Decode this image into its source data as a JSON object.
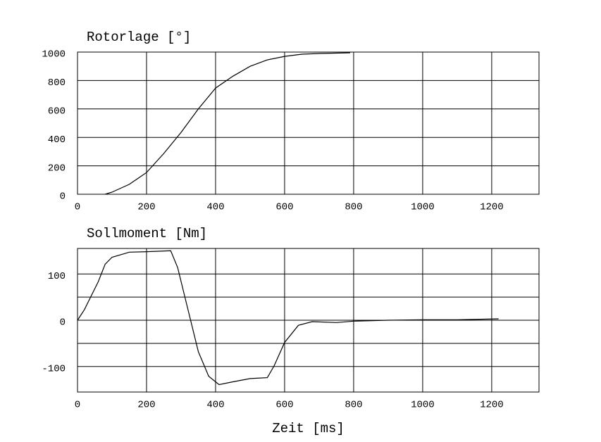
{
  "chart_data": [
    {
      "type": "line",
      "title": "Rotorlage [°]",
      "x": [
        80,
        100,
        150,
        200,
        250,
        300,
        350,
        400,
        450,
        500,
        550,
        600,
        650,
        700,
        790
      ],
      "values": [
        0,
        15,
        70,
        153,
        287,
        435,
        600,
        747,
        830,
        900,
        945,
        970,
        985,
        990,
        995
      ],
      "color": "#000000",
      "xlim": [
        0,
        1337
      ],
      "xticks": [
        0,
        200,
        400,
        600,
        800,
        1000,
        1200
      ],
      "ylim": [
        0,
        1000
      ],
      "yticks": [
        0,
        200,
        400,
        600,
        800,
        1000
      ],
      "grid": true
    },
    {
      "type": "line",
      "title": "Sollmoment [Nm]",
      "xlabel": "Zeit [ms]",
      "x": [
        0,
        20,
        40,
        60,
        80,
        100,
        150,
        200,
        270,
        290,
        320,
        350,
        380,
        410,
        450,
        500,
        550,
        570,
        600,
        640,
        680,
        750,
        800,
        900,
        1000,
        1100,
        1220
      ],
      "values": [
        0,
        23,
        53,
        83,
        121,
        136,
        147,
        148,
        150,
        114,
        23,
        -68,
        -121,
        -139,
        -133,
        -126,
        -124,
        -98,
        -48,
        -11,
        -3,
        -5,
        -2,
        0,
        1,
        1,
        3
      ],
      "color": "#000000",
      "xlim": [
        0,
        1337
      ],
      "xticks": [
        0,
        200,
        400,
        600,
        800,
        1000,
        1200
      ],
      "ylim": [
        -155,
        155
      ],
      "yticks": [
        -100,
        0,
        100
      ],
      "yminorticks": [
        -50,
        50
      ],
      "grid": true
    }
  ]
}
